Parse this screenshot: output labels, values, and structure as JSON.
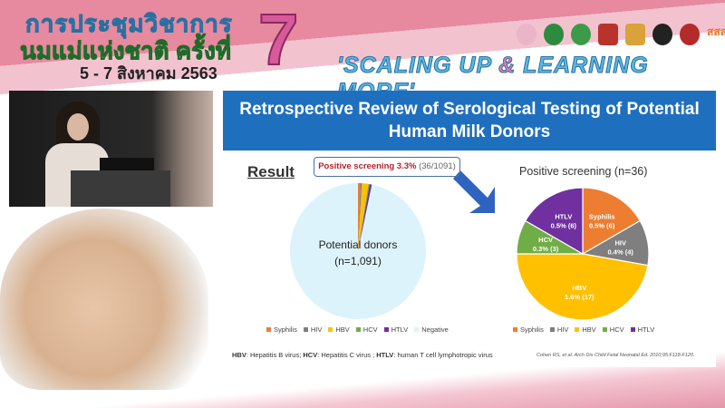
{
  "event": {
    "title_line1": "การประชุมวิชาการ",
    "title_line2": "นมแม่แห่งชาติ ครั้งที่",
    "dates": "5 - 7 สิงหาคม 2563",
    "edition": "7",
    "slogan_a": "'SCALING UP ",
    "slogan_amp": "&",
    "slogan_b": " LEARNING MORE'",
    "logo_text": "สสส"
  },
  "slide": {
    "title": "Retrospective Review of Serological Testing of Potential Human Milk Donors",
    "result_heading": "Result",
    "callout_bold": "Positive screening 3.3%",
    "callout_rest": " (36/1091)",
    "footnote": [
      {
        "abbr": "HBV",
        "text": ": Hepatitis B virus; "
      },
      {
        "abbr": "HCV",
        "text": ": Hepatitis C virus ; "
      },
      {
        "abbr": "HTLV",
        "text": ": human T cell lymphotropic virus"
      }
    ],
    "citation": "Cohen RS, et al. Arch Dis Child Fetal Neonatal Ed. 2010;95:F118-F120."
  },
  "chart_data": [
    {
      "type": "pie",
      "center_label": "Potential donors",
      "center_sublabel": "(n=1,091)",
      "categories": [
        "Syphilis",
        "HIV",
        "HBV",
        "HCV",
        "HTLV",
        "Negative"
      ],
      "values": [
        6,
        4,
        17,
        3,
        6,
        1055
      ],
      "colors": [
        "#ed7d31",
        "#7f7f7f",
        "#ffc000",
        "#70ad47",
        "#7030a0",
        "#ddf3fb"
      ],
      "legend": "bottom"
    },
    {
      "type": "pie",
      "title": "Positive screening (n=36)",
      "categories": [
        "Syphilis",
        "HIV",
        "HBV",
        "HCV",
        "HTLV"
      ],
      "values": [
        6,
        4,
        17,
        3,
        6
      ],
      "labels": [
        "0.5% (6)",
        "0.4% (4)",
        "1.6% (17)",
        "0.3% (3)",
        "0.5% (6)"
      ],
      "colors": [
        "#ed7d31",
        "#7f7f7f",
        "#ffc000",
        "#70ad47",
        "#7030a0"
      ],
      "legend": "bottom"
    }
  ]
}
